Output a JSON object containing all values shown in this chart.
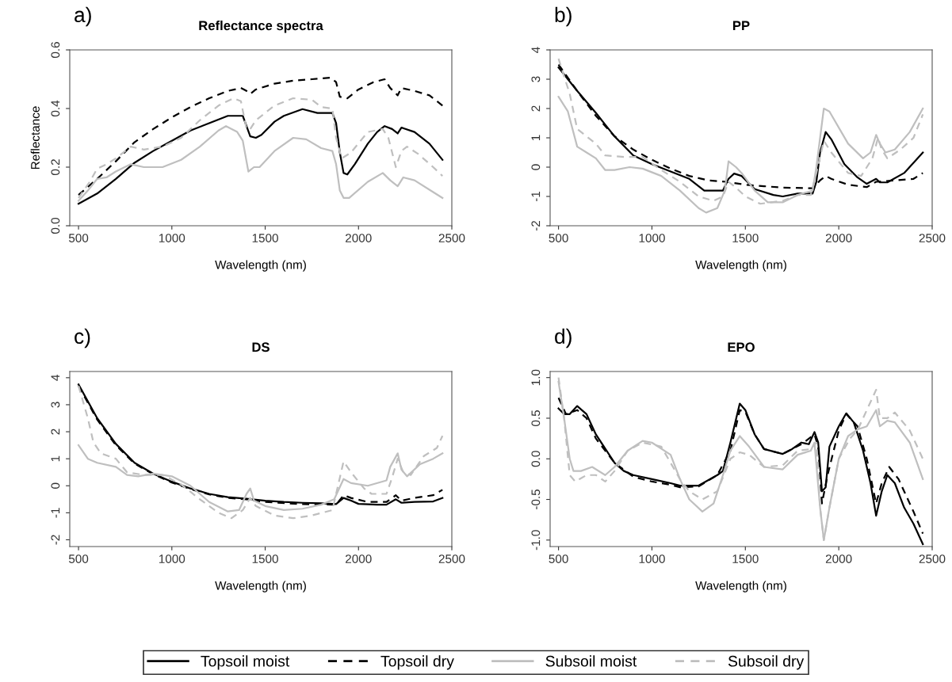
{
  "chart_data": [
    {
      "type": "line",
      "title": "Reflectance spectra",
      "xlabel": "Wavelength (nm)",
      "ylabel": "Reflectance",
      "annotations": [
        "a)"
      ],
      "xlim": [
        453,
        2500
      ],
      "xticks": [
        500,
        1000,
        1500,
        2000,
        2500
      ],
      "ylim": [
        0,
        0.6
      ],
      "yticks": [
        {
          "value": 0,
          "label": "0.0"
        },
        0.2,
        0.4,
        0.6
      ],
      "grid": false,
      "legend": "bottom",
      "series": [
        {
          "name": "Topsoil moist",
          "color": "#000000",
          "line_style": "solid",
          "x": [
            500,
            600,
            700,
            800,
            900,
            1000,
            1100,
            1200,
            1300,
            1380,
            1400,
            1420,
            1450,
            1480,
            1550,
            1600,
            1700,
            1780,
            1860,
            1880,
            1900,
            1920,
            1940,
            1980,
            2050,
            2100,
            2140,
            2180,
            2210,
            2230,
            2300,
            2380,
            2450
          ],
          "values": [
            0.075,
            0.11,
            0.16,
            0.215,
            0.255,
            0.29,
            0.325,
            0.35,
            0.375,
            0.375,
            0.34,
            0.305,
            0.3,
            0.31,
            0.355,
            0.375,
            0.398,
            0.385,
            0.385,
            0.35,
            0.25,
            0.18,
            0.175,
            0.21,
            0.28,
            0.32,
            0.34,
            0.33,
            0.315,
            0.335,
            0.32,
            0.28,
            0.225
          ]
        },
        {
          "name": "Topsoil dry",
          "color": "#000000",
          "line_style": "dashed",
          "x": [
            500,
            600,
            700,
            800,
            900,
            1000,
            1100,
            1200,
            1300,
            1370,
            1400,
            1420,
            1450,
            1550,
            1650,
            1750,
            1850,
            1880,
            1900,
            1940,
            2000,
            2080,
            2140,
            2170,
            2210,
            2230,
            2300,
            2380,
            2450
          ],
          "values": [
            0.105,
            0.16,
            0.22,
            0.285,
            0.33,
            0.37,
            0.405,
            0.435,
            0.46,
            0.47,
            0.46,
            0.45,
            0.465,
            0.485,
            0.495,
            0.5,
            0.505,
            0.49,
            0.44,
            0.435,
            0.465,
            0.49,
            0.5,
            0.47,
            0.445,
            0.47,
            0.46,
            0.445,
            0.41
          ]
        },
        {
          "name": "Subsoil moist",
          "color": "#bfbfbf",
          "line_style": "solid",
          "x": [
            500,
            550,
            600,
            650,
            700,
            780,
            850,
            950,
            1050,
            1150,
            1250,
            1290,
            1350,
            1380,
            1400,
            1410,
            1440,
            1470,
            1550,
            1650,
            1720,
            1800,
            1860,
            1880,
            1900,
            1920,
            1950,
            2050,
            2130,
            2170,
            2210,
            2240,
            2300,
            2400,
            2450
          ],
          "values": [
            0.085,
            0.12,
            0.16,
            0.165,
            0.185,
            0.21,
            0.2,
            0.2,
            0.225,
            0.27,
            0.325,
            0.34,
            0.32,
            0.29,
            0.22,
            0.185,
            0.2,
            0.2,
            0.255,
            0.3,
            0.295,
            0.265,
            0.255,
            0.21,
            0.12,
            0.095,
            0.095,
            0.15,
            0.18,
            0.155,
            0.135,
            0.165,
            0.155,
            0.115,
            0.095
          ]
        },
        {
          "name": "Subsoil dry",
          "color": "#bfbfbf",
          "line_style": "dashed",
          "x": [
            500,
            560,
            600,
            650,
            700,
            780,
            850,
            950,
            1050,
            1150,
            1250,
            1330,
            1370,
            1400,
            1420,
            1450,
            1550,
            1650,
            1750,
            1800,
            1860,
            1880,
            1910,
            1960,
            2050,
            2130,
            2160,
            2200,
            2230,
            2260,
            2320,
            2400,
            2450
          ],
          "values": [
            0.095,
            0.15,
            0.195,
            0.21,
            0.23,
            0.27,
            0.26,
            0.27,
            0.3,
            0.36,
            0.41,
            0.435,
            0.425,
            0.33,
            0.33,
            0.36,
            0.41,
            0.435,
            0.43,
            0.405,
            0.4,
            0.3,
            0.23,
            0.25,
            0.32,
            0.33,
            0.3,
            0.2,
            0.255,
            0.27,
            0.245,
            0.2,
            0.17
          ]
        }
      ]
    },
    {
      "type": "line",
      "title": "PP",
      "xlabel": "Wavelength (nm)",
      "annotations": [
        "b)"
      ],
      "xlim": [
        455,
        2500
      ],
      "xticks": [
        500,
        1000,
        1500,
        2000,
        2500
      ],
      "ylim": [
        -2,
        4
      ],
      "yticks": [
        -2,
        -1,
        0,
        1,
        2,
        3,
        4
      ],
      "grid": false,
      "series": [
        {
          "color": "#000000",
          "line_style": "solid",
          "x": [
            500,
            600,
            700,
            800,
            900,
            1000,
            1100,
            1200,
            1280,
            1380,
            1410,
            1440,
            1480,
            1550,
            1650,
            1700,
            1780,
            1860,
            1880,
            1900,
            1930,
            1960,
            2030,
            2100,
            2150,
            2200,
            2220,
            2260,
            2350,
            2450
          ],
          "values": [
            3.4,
            2.6,
            1.85,
            1.05,
            0.4,
            0.1,
            -0.15,
            -0.4,
            -0.8,
            -0.8,
            -0.4,
            -0.22,
            -0.3,
            -0.75,
            -0.95,
            -1.0,
            -0.9,
            -0.9,
            -0.5,
            0.5,
            1.2,
            0.95,
            0.1,
            -0.35,
            -0.57,
            -0.4,
            -0.52,
            -0.52,
            -0.2,
            0.5
          ]
        },
        {
          "color": "#000000",
          "line_style": "dashed",
          "x": [
            500,
            600,
            700,
            800,
            900,
            1000,
            1100,
            1200,
            1300,
            1400,
            1500,
            1600,
            1700,
            1860,
            1900,
            1930,
            1960,
            2050,
            2150,
            2200,
            2300,
            2400,
            2450
          ],
          "values": [
            3.5,
            2.6,
            1.75,
            1.05,
            0.6,
            0.25,
            -0.05,
            -0.3,
            -0.45,
            -0.5,
            -0.6,
            -0.65,
            -0.7,
            -0.72,
            -0.45,
            -0.3,
            -0.4,
            -0.6,
            -0.68,
            -0.5,
            -0.45,
            -0.4,
            -0.2
          ]
        },
        {
          "color": "#bfbfbf",
          "line_style": "solid",
          "x": [
            500,
            550,
            600,
            650,
            700,
            750,
            800,
            880,
            950,
            1050,
            1150,
            1250,
            1290,
            1350,
            1390,
            1410,
            1450,
            1480,
            1550,
            1620,
            1700,
            1780,
            1860,
            1880,
            1920,
            1950,
            2050,
            2130,
            2170,
            2200,
            2220,
            2250,
            2300,
            2380,
            2450
          ],
          "values": [
            2.4,
            1.9,
            0.7,
            0.5,
            0.3,
            -0.1,
            -0.1,
            0.0,
            -0.05,
            -0.3,
            -0.8,
            -1.4,
            -1.55,
            -1.4,
            -0.8,
            0.2,
            0.0,
            -0.2,
            -0.8,
            -1.2,
            -1.2,
            -0.95,
            -0.8,
            0.0,
            2.0,
            1.9,
            0.8,
            0.3,
            0.5,
            1.1,
            0.8,
            0.5,
            0.6,
            1.2,
            2.0
          ]
        },
        {
          "color": "#bfbfbf",
          "line_style": "dashed",
          "x": [
            500,
            560,
            600,
            700,
            750,
            850,
            950,
            1050,
            1150,
            1250,
            1330,
            1380,
            1410,
            1450,
            1500,
            1580,
            1700,
            1780,
            1850,
            1880,
            1920,
            1960,
            2050,
            2120,
            2180,
            2210,
            2230,
            2260,
            2330,
            2400,
            2450
          ],
          "values": [
            3.7,
            2.5,
            1.3,
            0.8,
            0.4,
            0.35,
            0.35,
            -0.1,
            -0.5,
            -1.0,
            -1.15,
            -1.0,
            -0.5,
            -0.7,
            -1.0,
            -1.25,
            -1.15,
            -0.95,
            -0.95,
            -0.2,
            0.9,
            0.5,
            -0.2,
            -0.3,
            0.3,
            1.0,
            0.6,
            0.3,
            0.6,
            1.0,
            1.8
          ]
        }
      ]
    },
    {
      "type": "line",
      "title": "DS",
      "xlabel": "Wavelength (nm)",
      "annotations": [
        "c)"
      ],
      "xlim": [
        453,
        2500
      ],
      "xticks": [
        500,
        1000,
        1500,
        2000,
        2500
      ],
      "ylim": [
        -2.25,
        4.23
      ],
      "yticks": [
        -2,
        -1,
        0,
        1,
        2,
        3,
        4
      ],
      "grid": false,
      "series": [
        {
          "color": "#000000",
          "line_style": "solid",
          "x": [
            500,
            600,
            700,
            800,
            900,
            1000,
            1100,
            1200,
            1300,
            1400,
            1500,
            1600,
            1700,
            1800,
            1880,
            1920,
            1960,
            2000,
            2100,
            2150,
            2200,
            2230,
            2300,
            2400,
            2450
          ],
          "values": [
            3.75,
            2.5,
            1.55,
            0.85,
            0.45,
            0.15,
            -0.1,
            -0.3,
            -0.42,
            -0.48,
            -0.55,
            -0.6,
            -0.63,
            -0.65,
            -0.68,
            -0.45,
            -0.55,
            -0.67,
            -0.7,
            -0.7,
            -0.5,
            -0.63,
            -0.6,
            -0.58,
            -0.45
          ]
        },
        {
          "color": "#000000",
          "line_style": "dashed",
          "x": [
            500,
            600,
            700,
            800,
            900,
            1000,
            1100,
            1200,
            1300,
            1400,
            1500,
            1700,
            1880,
            1920,
            1960,
            2050,
            2150,
            2200,
            2230,
            2300,
            2400,
            2450
          ],
          "values": [
            3.7,
            2.45,
            1.5,
            0.82,
            0.43,
            0.12,
            -0.12,
            -0.32,
            -0.45,
            -0.5,
            -0.6,
            -0.68,
            -0.7,
            -0.35,
            -0.45,
            -0.6,
            -0.6,
            -0.35,
            -0.55,
            -0.45,
            -0.35,
            -0.15
          ]
        },
        {
          "color": "#bfbfbf",
          "line_style": "solid",
          "x": [
            500,
            550,
            600,
            700,
            760,
            820,
            900,
            1000,
            1100,
            1200,
            1300,
            1360,
            1400,
            1420,
            1440,
            1500,
            1600,
            1700,
            1800,
            1870,
            1920,
            1960,
            2050,
            2150,
            2170,
            2210,
            2230,
            2260,
            2330,
            2400,
            2450
          ],
          "values": [
            1.5,
            1.0,
            0.85,
            0.7,
            0.4,
            0.35,
            0.45,
            0.35,
            0.0,
            -0.6,
            -0.95,
            -0.9,
            -0.3,
            -0.1,
            -0.55,
            -0.75,
            -0.9,
            -0.85,
            -0.7,
            -0.5,
            0.25,
            0.1,
            0.0,
            0.2,
            0.7,
            1.2,
            0.6,
            0.35,
            0.8,
            1.0,
            1.2
          ]
        },
        {
          "color": "#bfbfbf",
          "line_style": "dashed",
          "x": [
            500,
            550,
            580,
            620,
            700,
            760,
            850,
            950,
            1050,
            1150,
            1250,
            1320,
            1380,
            1420,
            1450,
            1550,
            1650,
            1750,
            1860,
            1920,
            1960,
            2030,
            2070,
            2150,
            2180,
            2210,
            2240,
            2280,
            2350,
            2420,
            2450
          ],
          "values": [
            3.7,
            2.5,
            1.6,
            1.2,
            1.0,
            0.5,
            0.4,
            0.4,
            0.05,
            -0.5,
            -1.0,
            -1.2,
            -0.9,
            -0.45,
            -0.75,
            -1.1,
            -1.2,
            -1.1,
            -0.9,
            0.9,
            0.5,
            -0.1,
            -0.3,
            -0.3,
            0.3,
            1.0,
            0.5,
            0.4,
            1.1,
            1.4,
            1.85
          ]
        }
      ]
    },
    {
      "type": "line",
      "title": "EPO",
      "xlabel": "Wavelength (nm)",
      "annotations": [
        "d)"
      ],
      "xlim": [
        455,
        2500
      ],
      "xticks": [
        500,
        1000,
        1500,
        2000,
        2500
      ],
      "ylim": [
        -1.08,
        1.075
      ],
      "yticks": [
        {
          "value": -1,
          "label": "-1.0"
        },
        -0.5,
        {
          "value": 0,
          "label": "0.0"
        },
        0.5,
        {
          "value": 1,
          "label": "1.0"
        }
      ],
      "grid": false,
      "series": [
        {
          "color": "#000000",
          "line_style": "solid",
          "x": [
            500,
            530,
            560,
            600,
            650,
            700,
            800,
            850,
            900,
            1000,
            1100,
            1150,
            1250,
            1350,
            1380,
            1420,
            1470,
            1500,
            1550,
            1600,
            1700,
            1750,
            1800,
            1840,
            1870,
            1890,
            1910,
            1930,
            1950,
            2000,
            2040,
            2080,
            2130,
            2170,
            2200,
            2230,
            2260,
            2300,
            2350,
            2400,
            2450
          ],
          "values": [
            0.62,
            0.55,
            0.55,
            0.65,
            0.55,
            0.3,
            -0.05,
            -0.15,
            -0.2,
            -0.25,
            -0.3,
            -0.33,
            -0.33,
            -0.2,
            -0.15,
            0.2,
            0.68,
            0.6,
            0.3,
            0.12,
            0.06,
            0.12,
            0.2,
            0.18,
            0.33,
            0.2,
            -0.4,
            -0.35,
            0.15,
            0.4,
            0.56,
            0.45,
            0.1,
            -0.3,
            -0.7,
            -0.4,
            -0.2,
            -0.3,
            -0.6,
            -0.8,
            -1.05
          ]
        },
        {
          "color": "#000000",
          "line_style": "dashed",
          "x": [
            500,
            540,
            600,
            650,
            700,
            800,
            900,
            1000,
            1100,
            1150,
            1250,
            1350,
            1420,
            1470,
            1500,
            1550,
            1600,
            1700,
            1800,
            1870,
            1890,
            1910,
            1940,
            2000,
            2040,
            2100,
            2150,
            2200,
            2230,
            2270,
            2320,
            2400,
            2450
          ],
          "values": [
            0.75,
            0.55,
            0.6,
            0.5,
            0.25,
            -0.05,
            -0.22,
            -0.28,
            -0.32,
            -0.35,
            -0.34,
            -0.2,
            0.1,
            0.6,
            0.58,
            0.3,
            0.12,
            0.06,
            0.18,
            0.3,
            0.15,
            -0.55,
            -0.2,
            0.35,
            0.55,
            0.4,
            0.0,
            -0.55,
            -0.3,
            -0.1,
            -0.25,
            -0.65,
            -0.92
          ]
        },
        {
          "color": "#bfbfbf",
          "line_style": "solid",
          "x": [
            500,
            530,
            560,
            580,
            620,
            680,
            750,
            800,
            870,
            950,
            1000,
            1100,
            1150,
            1200,
            1270,
            1330,
            1380,
            1420,
            1470,
            1520,
            1600,
            1700,
            1780,
            1850,
            1870,
            1900,
            1920,
            1950,
            2000,
            2050,
            2100,
            2150,
            2200,
            2220,
            2260,
            2300,
            2380,
            2450
          ],
          "values": [
            0.95,
            0.5,
            0.0,
            -0.15,
            -0.15,
            -0.1,
            -0.2,
            -0.1,
            0.1,
            0.22,
            0.2,
            0.05,
            -0.25,
            -0.5,
            -0.65,
            -0.55,
            -0.2,
            0.1,
            0.28,
            0.15,
            -0.1,
            -0.13,
            0.05,
            0.1,
            0.2,
            -0.6,
            -1.0,
            -0.6,
            0.0,
            0.28,
            0.36,
            0.4,
            0.6,
            0.4,
            0.47,
            0.45,
            0.2,
            -0.25
          ]
        },
        {
          "color": "#bfbfbf",
          "line_style": "dashed",
          "x": [
            500,
            530,
            560,
            590,
            650,
            700,
            750,
            800,
            870,
            950,
            1050,
            1150,
            1200,
            1270,
            1350,
            1420,
            1470,
            1520,
            1600,
            1700,
            1780,
            1850,
            1880,
            1900,
            1920,
            1950,
            2000,
            2060,
            2100,
            2150,
            2200,
            2220,
            2260,
            2300,
            2380,
            2450
          ],
          "values": [
            1.0,
            0.5,
            -0.2,
            -0.28,
            -0.2,
            -0.2,
            -0.28,
            -0.15,
            0.1,
            0.2,
            0.15,
            -0.25,
            -0.4,
            -0.5,
            -0.4,
            0.0,
            0.08,
            0.05,
            -0.1,
            -0.08,
            0.1,
            0.12,
            0.2,
            -0.6,
            -1.0,
            -0.6,
            0.0,
            0.25,
            0.35,
            0.6,
            0.85,
            0.5,
            0.5,
            0.57,
            0.35,
            0.0
          ]
        }
      ]
    }
  ]
}
